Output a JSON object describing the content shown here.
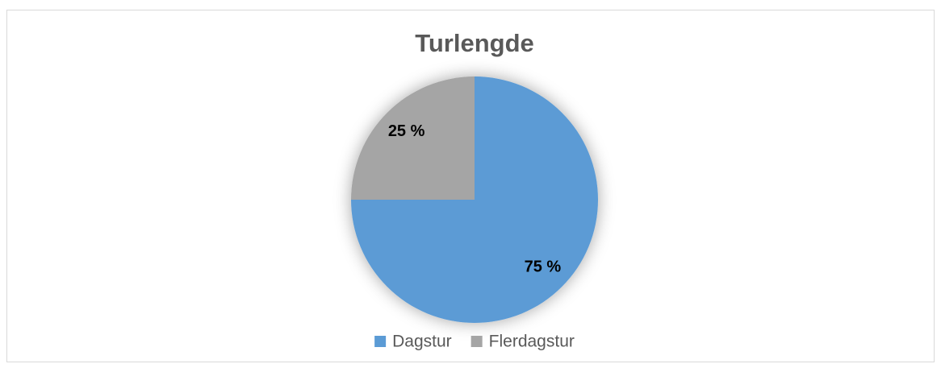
{
  "chart_data": {
    "type": "pie",
    "title": "Turlengde",
    "categories": [
      "Dagstur",
      "Flerdagstur"
    ],
    "values": [
      75,
      25
    ],
    "value_labels": [
      "75 %",
      "25 %"
    ],
    "colors": [
      "#5b9bd5",
      "#a5a5a5"
    ],
    "legend": "bottom"
  }
}
